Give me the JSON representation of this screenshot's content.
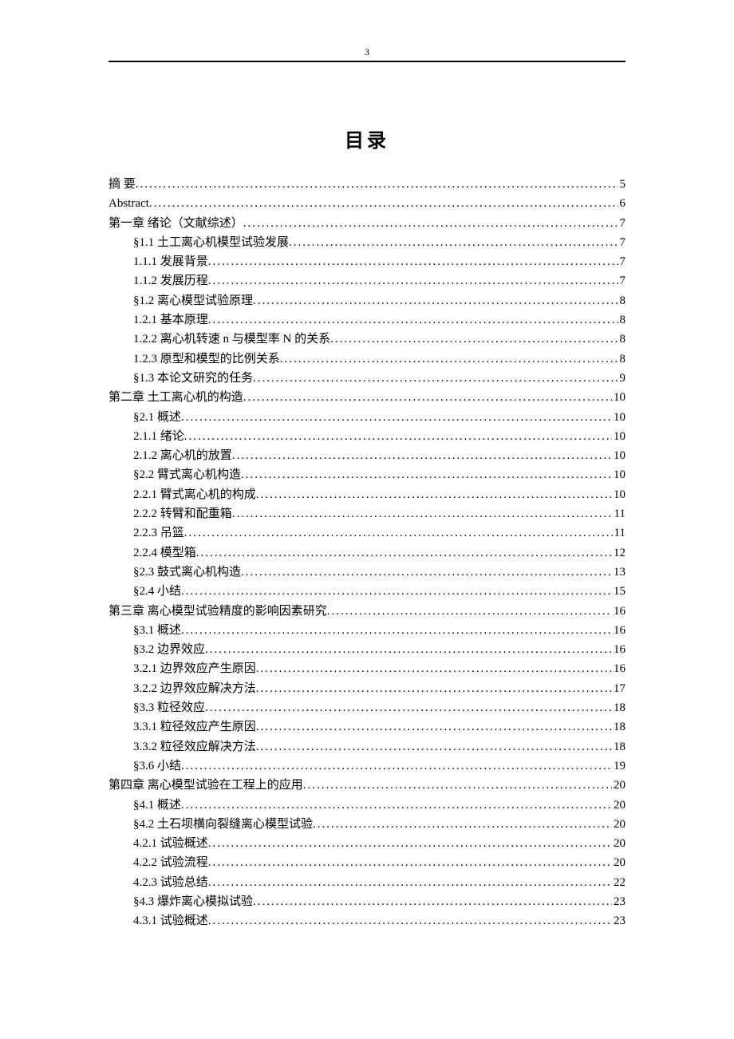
{
  "page_number": "3",
  "title": "目录",
  "toc": [
    {
      "label": "摘 要",
      "page": "5",
      "indent": 0
    },
    {
      "label": "Abstract",
      "page": "6",
      "indent": 0
    },
    {
      "label": "第一章 绪论（文献综述）",
      "page": "7",
      "indent": 0
    },
    {
      "label": "§1.1 土工离心机模型试验发展",
      "page": "7",
      "indent": 1
    },
    {
      "label": "1.1.1 发展背景",
      "page": "7",
      "indent": 1
    },
    {
      "label": "1.1.2 发展历程",
      "page": "7",
      "indent": 1
    },
    {
      "label": "§1.2 离心模型试验原理",
      "page": "8",
      "indent": 1
    },
    {
      "label": "1.2.1 基本原理",
      "page": "8",
      "indent": 1
    },
    {
      "label": "1.2.2 离心机转速 n 与模型率 N 的关系",
      "page": "8",
      "indent": 1
    },
    {
      "label": "1.2.3 原型和模型的比例关系",
      "page": "8",
      "indent": 1
    },
    {
      "label": "§1.3 本论文研究的任务",
      "page": "9",
      "indent": 1
    },
    {
      "label": "第二章 土工离心机的构造",
      "page": "10",
      "indent": 0
    },
    {
      "label": "§2.1 概述",
      "page": "10",
      "indent": 1
    },
    {
      "label": "2.1.1 绪论",
      "page": "10",
      "indent": 1
    },
    {
      "label": "2.1.2 离心机的放置",
      "page": "10",
      "indent": 1
    },
    {
      "label": "§2.2 臂式离心机构造",
      "page": "10",
      "indent": 1
    },
    {
      "label": "2.2.1 臂式离心机的构成",
      "page": "10",
      "indent": 1
    },
    {
      "label": "2.2.2 转臂和配重箱",
      "page": "11",
      "indent": 1
    },
    {
      "label": "2.2.3 吊篮",
      "page": "11",
      "indent": 1
    },
    {
      "label": "2.2.4 模型箱",
      "page": "12",
      "indent": 1
    },
    {
      "label": "§2.3 鼓式离心机构造",
      "page": "13",
      "indent": 1
    },
    {
      "label": "§2.4 小结",
      "page": "15",
      "indent": 1
    },
    {
      "label": "第三章 离心模型试验精度的影响因素研究",
      "page": "16",
      "indent": 0
    },
    {
      "label": "§3.1 概述",
      "page": "16",
      "indent": 1
    },
    {
      "label": "§3.2 边界效应",
      "page": "16",
      "indent": 1
    },
    {
      "label": "3.2.1 边界效应产生原因",
      "page": "16",
      "indent": 1
    },
    {
      "label": "3.2.2 边界效应解决方法",
      "page": "17",
      "indent": 1
    },
    {
      "label": "§3.3 粒径效应",
      "page": "18",
      "indent": 1
    },
    {
      "label": "3.3.1 粒径效应产生原因",
      "page": "18",
      "indent": 1
    },
    {
      "label": "3.3.2 粒径效应解决方法",
      "page": "18",
      "indent": 1
    },
    {
      "label": "§3.6 小结",
      "page": "19",
      "indent": 1
    },
    {
      "label": "第四章 离心模型试验在工程上的应用",
      "page": "20",
      "indent": 0
    },
    {
      "label": "§4.1 概述",
      "page": "20",
      "indent": 1
    },
    {
      "label": "§4.2 土石坝横向裂缝离心模型试验",
      "page": "20",
      "indent": 1
    },
    {
      "label": "4.2.1 试验概述",
      "page": "20",
      "indent": 1
    },
    {
      "label": "4.2.2 试验流程",
      "page": "20",
      "indent": 1
    },
    {
      "label": "4.2.3 试验总结",
      "page": "22",
      "indent": 1
    },
    {
      "label": "§4.3 爆炸离心模拟试验",
      "page": "23",
      "indent": 1
    },
    {
      "label": "4.3.1 试验概述",
      "page": "23",
      "indent": 1
    }
  ]
}
